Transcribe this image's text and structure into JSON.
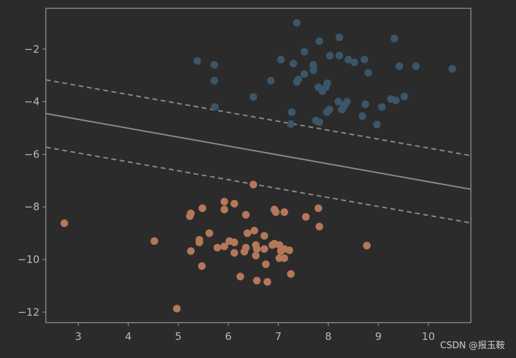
{
  "chart_data": {
    "type": "scatter",
    "xlim": [
      2.35,
      10.85
    ],
    "ylim": [
      -12.4,
      -0.45
    ],
    "xticks": [
      3,
      4,
      5,
      6,
      7,
      8,
      9,
      10
    ],
    "yticks": [
      -2,
      -4,
      -6,
      -8,
      -10,
      -12
    ],
    "xtick_labels": [
      "3",
      "4",
      "5",
      "6",
      "7",
      "8",
      "9",
      "10"
    ],
    "ytick_labels": [
      "−2",
      "−4",
      "−6",
      "−8",
      "−10",
      "−12"
    ],
    "grid": false,
    "series": [
      {
        "color": "#3b5668",
        "points": [
          [
            7.37,
            -1.0
          ],
          [
            8.22,
            -1.55
          ],
          [
            9.32,
            -1.6
          ],
          [
            7.82,
            -1.7
          ],
          [
            7.52,
            -2.1
          ],
          [
            7.05,
            -2.4
          ],
          [
            8.03,
            -2.25
          ],
          [
            8.22,
            -2.25
          ],
          [
            8.4,
            -2.4
          ],
          [
            8.52,
            -2.5
          ],
          [
            8.72,
            -2.4
          ],
          [
            5.38,
            -2.45
          ],
          [
            5.72,
            -2.6
          ],
          [
            7.3,
            -2.55
          ],
          [
            7.7,
            -2.6
          ],
          [
            9.42,
            -2.65
          ],
          [
            9.75,
            -2.65
          ],
          [
            10.48,
            -2.75
          ],
          [
            7.7,
            -2.8
          ],
          [
            7.52,
            -2.95
          ],
          [
            8.8,
            -2.9
          ],
          [
            6.85,
            -3.2
          ],
          [
            5.72,
            -3.2
          ],
          [
            7.4,
            -3.15
          ],
          [
            7.37,
            -3.25
          ],
          [
            7.98,
            -3.3
          ],
          [
            7.8,
            -3.45
          ],
          [
            7.95,
            -3.45
          ],
          [
            7.88,
            -3.6
          ],
          [
            6.5,
            -3.82
          ],
          [
            9.52,
            -3.8
          ],
          [
            9.25,
            -3.9
          ],
          [
            9.35,
            -3.95
          ],
          [
            8.2,
            -4.0
          ],
          [
            8.37,
            -4.0
          ],
          [
            8.32,
            -4.15
          ],
          [
            8.27,
            -4.3
          ],
          [
            8.74,
            -4.1
          ],
          [
            9.07,
            -4.2
          ],
          [
            8.02,
            -4.3
          ],
          [
            7.97,
            -4.4
          ],
          [
            5.73,
            -4.2
          ],
          [
            7.27,
            -4.4
          ],
          [
            8.68,
            -4.55
          ],
          [
            7.75,
            -4.72
          ],
          [
            7.82,
            -4.78
          ],
          [
            7.25,
            -4.85
          ],
          [
            8.97,
            -4.87
          ]
        ]
      },
      {
        "color": "#b5775a",
        "points": [
          [
            6.5,
            -7.15
          ],
          [
            5.92,
            -7.8
          ],
          [
            6.12,
            -7.88
          ],
          [
            5.48,
            -8.05
          ],
          [
            5.92,
            -8.1
          ],
          [
            6.92,
            -8.1
          ],
          [
            7.8,
            -8.05
          ],
          [
            5.25,
            -8.25
          ],
          [
            5.23,
            -8.35
          ],
          [
            6.95,
            -8.2
          ],
          [
            7.12,
            -8.2
          ],
          [
            6.35,
            -8.3
          ],
          [
            7.55,
            -8.38
          ],
          [
            2.72,
            -8.62
          ],
          [
            7.82,
            -8.75
          ],
          [
            6.52,
            -8.9
          ],
          [
            6.38,
            -9.0
          ],
          [
            5.62,
            -9.0
          ],
          [
            6.72,
            -9.1
          ],
          [
            4.52,
            -9.3
          ],
          [
            5.42,
            -9.25
          ],
          [
            5.42,
            -9.35
          ],
          [
            6.02,
            -9.3
          ],
          [
            6.12,
            -9.35
          ],
          [
            6.55,
            -9.45
          ],
          [
            6.88,
            -9.45
          ],
          [
            6.92,
            -9.4
          ],
          [
            7.02,
            -9.45
          ],
          [
            8.77,
            -9.47
          ],
          [
            5.92,
            -9.5
          ],
          [
            5.78,
            -9.55
          ],
          [
            6.35,
            -9.55
          ],
          [
            6.57,
            -9.6
          ],
          [
            6.72,
            -9.6
          ],
          [
            7.12,
            -9.6
          ],
          [
            7.22,
            -9.65
          ],
          [
            7.05,
            -9.68
          ],
          [
            5.25,
            -9.68
          ],
          [
            6.32,
            -9.7
          ],
          [
            6.12,
            -9.75
          ],
          [
            6.55,
            -9.85
          ],
          [
            7.02,
            -9.95
          ],
          [
            7.12,
            -9.95
          ],
          [
            6.75,
            -10.18
          ],
          [
            5.47,
            -10.25
          ],
          [
            7.25,
            -10.55
          ],
          [
            6.24,
            -10.65
          ],
          [
            6.57,
            -10.8
          ],
          [
            6.78,
            -10.85
          ],
          [
            4.97,
            -11.87
          ]
        ]
      }
    ],
    "lines": [
      {
        "style": "solid",
        "p1": [
          2.35,
          -4.45
        ],
        "p2": [
          10.85,
          -7.33
        ]
      },
      {
        "style": "dashed",
        "p1": [
          2.35,
          -3.17
        ],
        "p2": [
          10.85,
          -6.05
        ]
      },
      {
        "style": "dashed",
        "p1": [
          2.35,
          -5.73
        ],
        "p2": [
          10.85,
          -8.61
        ]
      }
    ]
  },
  "watermark": "CSDN @报玉鞍"
}
